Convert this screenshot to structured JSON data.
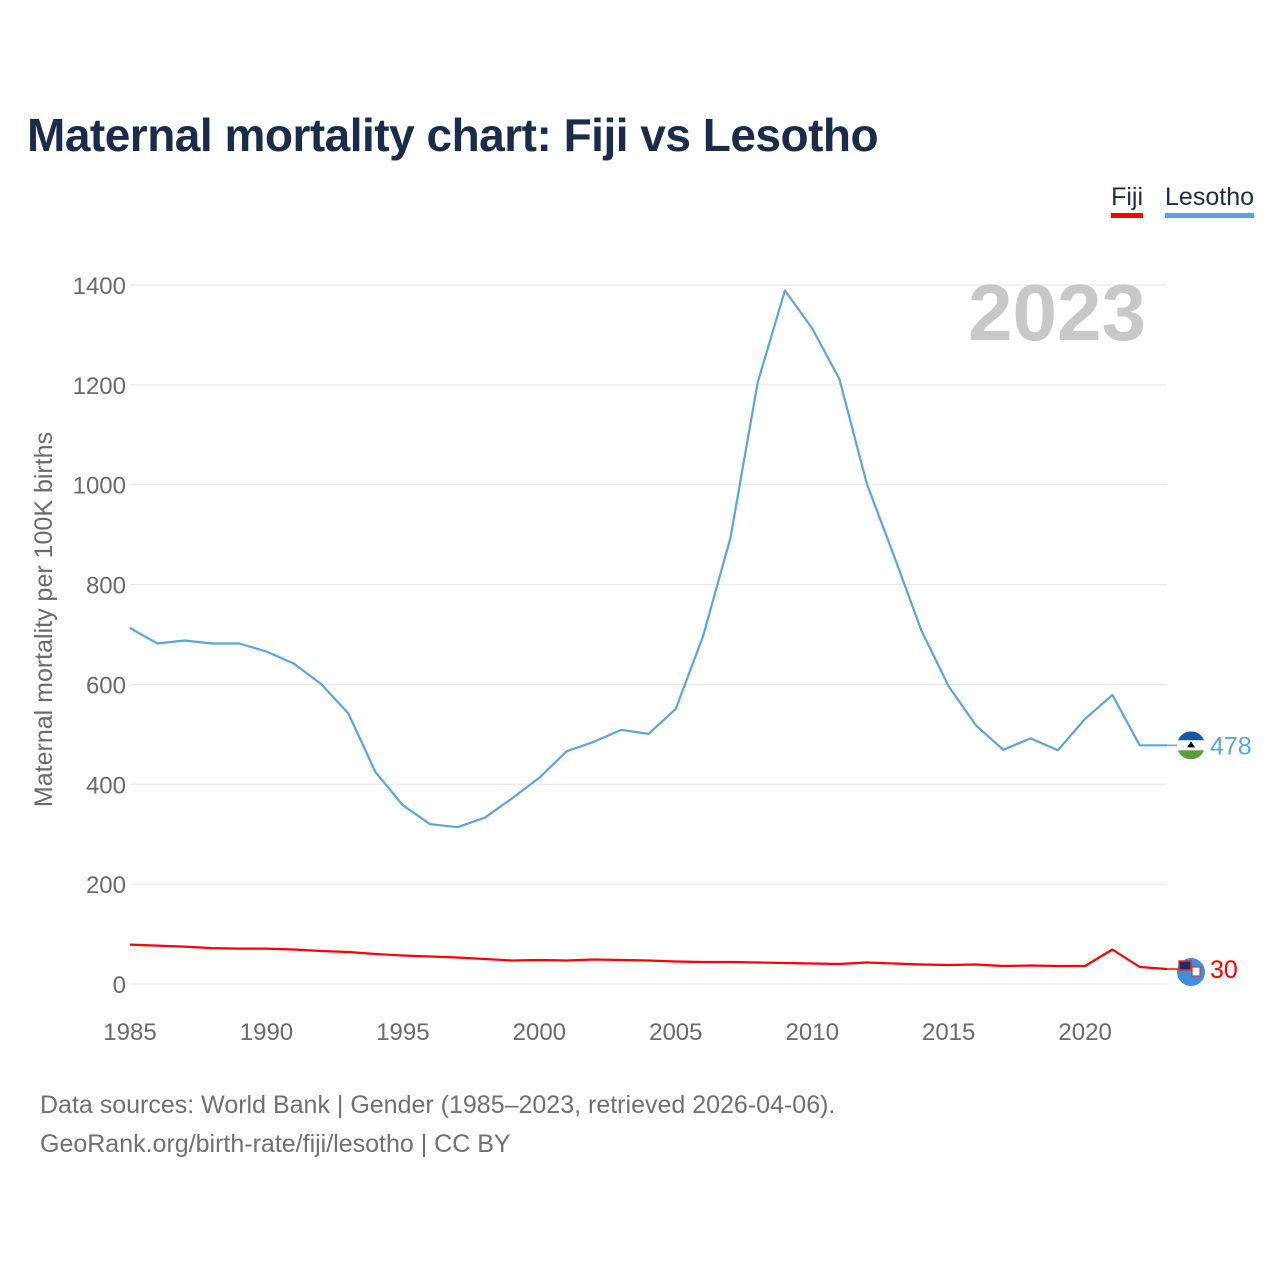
{
  "page": {
    "title": "Maternal mortality chart: Fiji vs Lesotho",
    "source_line1": "Data sources: World Bank | Gender (1985–2023, retrieved 2026-04-06).",
    "source_line2": "GeoRank.org/birth-rate/fiji/lesotho | CC BY"
  },
  "chart_data": {
    "type": "line",
    "title": "Maternal mortality chart: Fiji vs Lesotho",
    "xlabel": "",
    "ylabel": "Maternal mortality per 100K births",
    "xlim": [
      1985,
      2023
    ],
    "ylim": [
      0,
      1400
    ],
    "x_ticks": [
      1985,
      1990,
      1995,
      2000,
      2005,
      2010,
      2015,
      2020
    ],
    "y_ticks": [
      0,
      200,
      400,
      600,
      800,
      1000,
      1200,
      1400
    ],
    "grid": true,
    "legend_position": "top-right",
    "year_watermark": "2023",
    "x": [
      1985,
      1986,
      1987,
      1988,
      1989,
      1990,
      1991,
      1992,
      1993,
      1994,
      1995,
      1996,
      1997,
      1998,
      1999,
      2000,
      2001,
      2002,
      2003,
      2004,
      2005,
      2006,
      2007,
      2008,
      2009,
      2010,
      2011,
      2012,
      2013,
      2014,
      2015,
      2016,
      2017,
      2018,
      2019,
      2020,
      2021,
      2022,
      2023
    ],
    "series": [
      {
        "name": "Fiji",
        "color": "#ff0000",
        "end_label": "30",
        "flag_icon": "fiji-flag-icon",
        "values": [
          79,
          77,
          75,
          72,
          71,
          71,
          69,
          66,
          64,
          60,
          57,
          55,
          53,
          50,
          47,
          48,
          47,
          49,
          48,
          47,
          45,
          44,
          44,
          43,
          42,
          41,
          40,
          43,
          41,
          39,
          38,
          39,
          36,
          37,
          36,
          36,
          69,
          34,
          30
        ]
      },
      {
        "name": "Lesotho",
        "color": "#5ba3e6",
        "end_label": "478",
        "flag_icon": "lesotho-flag-icon",
        "values": [
          713,
          682,
          688,
          682,
          682,
          666,
          642,
          601,
          542,
          424,
          358,
          320,
          314,
          333,
          372,
          413,
          466,
          485,
          509,
          501,
          551,
          697,
          893,
          1205,
          1389,
          1313,
          1211,
          1002,
          857,
          708,
          596,
          518,
          469,
          492,
          468,
          531,
          579,
          478,
          478
        ]
      }
    ]
  }
}
